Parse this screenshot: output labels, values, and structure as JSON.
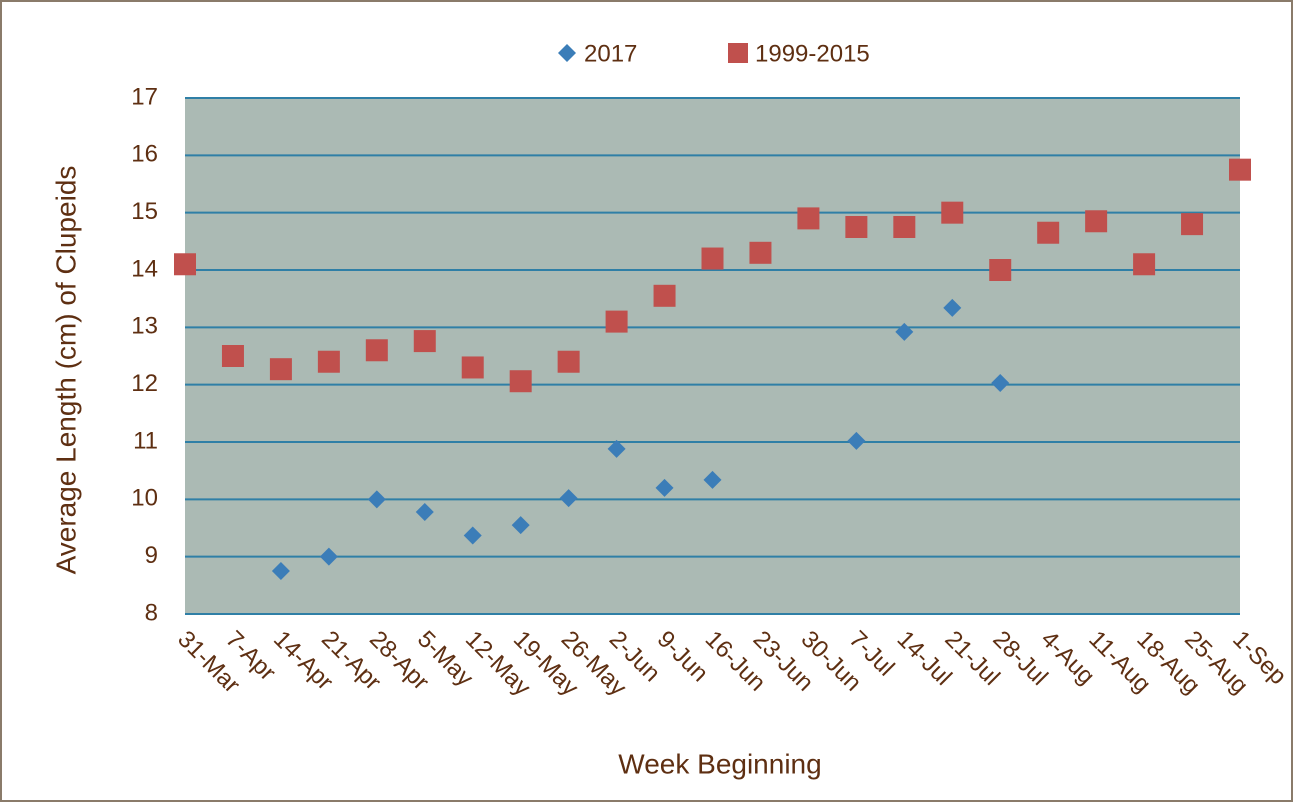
{
  "chart_data": {
    "type": "scatter",
    "x_label": "Week Beginning",
    "y_label": "Average  Length (cm) of Clupeids",
    "categories": [
      "31-Mar",
      "7-Apr",
      "14-Apr",
      "21-Apr",
      "28-Apr",
      "5-May",
      "12-May",
      "19-May",
      "26-May",
      "2-Jun",
      "9-Jun",
      "16-Jun",
      "23-Jun",
      "30-Jun",
      "7-Jul",
      "14-Jul",
      "21-Jul",
      "28-Jul",
      "4-Aug",
      "11-Aug",
      "18-Aug",
      "25-Aug",
      "1-Sep"
    ],
    "series": [
      {
        "name": "2017",
        "color": "#3b7db8",
        "marker": "diamond",
        "values": [
          null,
          null,
          8.75,
          9.0,
          10.0,
          9.78,
          9.37,
          9.55,
          10.02,
          10.88,
          10.2,
          10.34,
          null,
          null,
          11.02,
          12.92,
          13.34,
          12.03,
          null,
          null,
          null,
          null,
          null
        ]
      },
      {
        "name": "1999-2015",
        "color": "#c0504d",
        "marker": "square",
        "values": [
          14.1,
          12.5,
          12.27,
          12.4,
          12.6,
          12.76,
          12.3,
          12.06,
          12.4,
          13.1,
          13.55,
          14.2,
          14.3,
          14.9,
          14.75,
          14.75,
          15.0,
          14.0,
          14.65,
          14.85,
          14.1,
          14.8,
          15.75
        ]
      }
    ],
    "ylim": [
      8,
      17
    ],
    "yticks": [
      8,
      9,
      10,
      11,
      12,
      13,
      14,
      15,
      16,
      17
    ],
    "grid": true
  }
}
